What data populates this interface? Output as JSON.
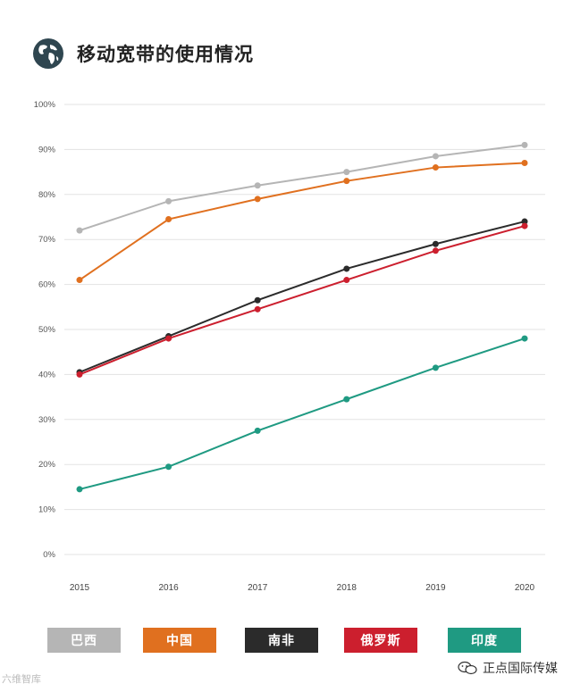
{
  "header": {
    "icon": "globe-icon",
    "title": "移动宽带的使用情况"
  },
  "chart_data": {
    "type": "line",
    "title": "移动宽带的使用情况",
    "xlabel": "",
    "ylabel": "",
    "x": [
      "2015",
      "2016",
      "2017",
      "2018",
      "2019",
      "2020"
    ],
    "ylim": [
      0,
      100
    ],
    "yticks": [
      "100%",
      "90%",
      "80%",
      "70%",
      "60%",
      "50%",
      "40%",
      "30%",
      "20%",
      "10%",
      "0%"
    ],
    "grid": true,
    "legend_position": "bottom",
    "series": [
      {
        "name": "巴西",
        "color": "#b5b5b5",
        "values": [
          72,
          78.5,
          82,
          85,
          88.5,
          91
        ]
      },
      {
        "name": "中国",
        "color": "#e0701f",
        "values": [
          61,
          74.5,
          79,
          83,
          86,
          87
        ]
      },
      {
        "name": "南非",
        "color": "#2b2b2b",
        "values": [
          40.5,
          48.5,
          56.5,
          63.5,
          69,
          74
        ]
      },
      {
        "name": "俄罗斯",
        "color": "#cc1f2e",
        "values": [
          40,
          48,
          54.5,
          61,
          67.5,
          73
        ]
      },
      {
        "name": "印度",
        "color": "#1f9a82",
        "values": [
          14.5,
          19.5,
          27.5,
          34.5,
          41.5,
          48
        ]
      }
    ]
  },
  "legend": [
    {
      "label": "巴西",
      "color": "#b5b5b5"
    },
    {
      "label": "中国",
      "color": "#e0701f"
    },
    {
      "label": "南非",
      "color": "#2b2b2b"
    },
    {
      "label": "俄罗斯",
      "color": "#cc1f2e"
    },
    {
      "label": "印度",
      "color": "#1f9a82"
    }
  ],
  "watermark": {
    "left": "六维智库",
    "right": "正点国际传媒"
  }
}
